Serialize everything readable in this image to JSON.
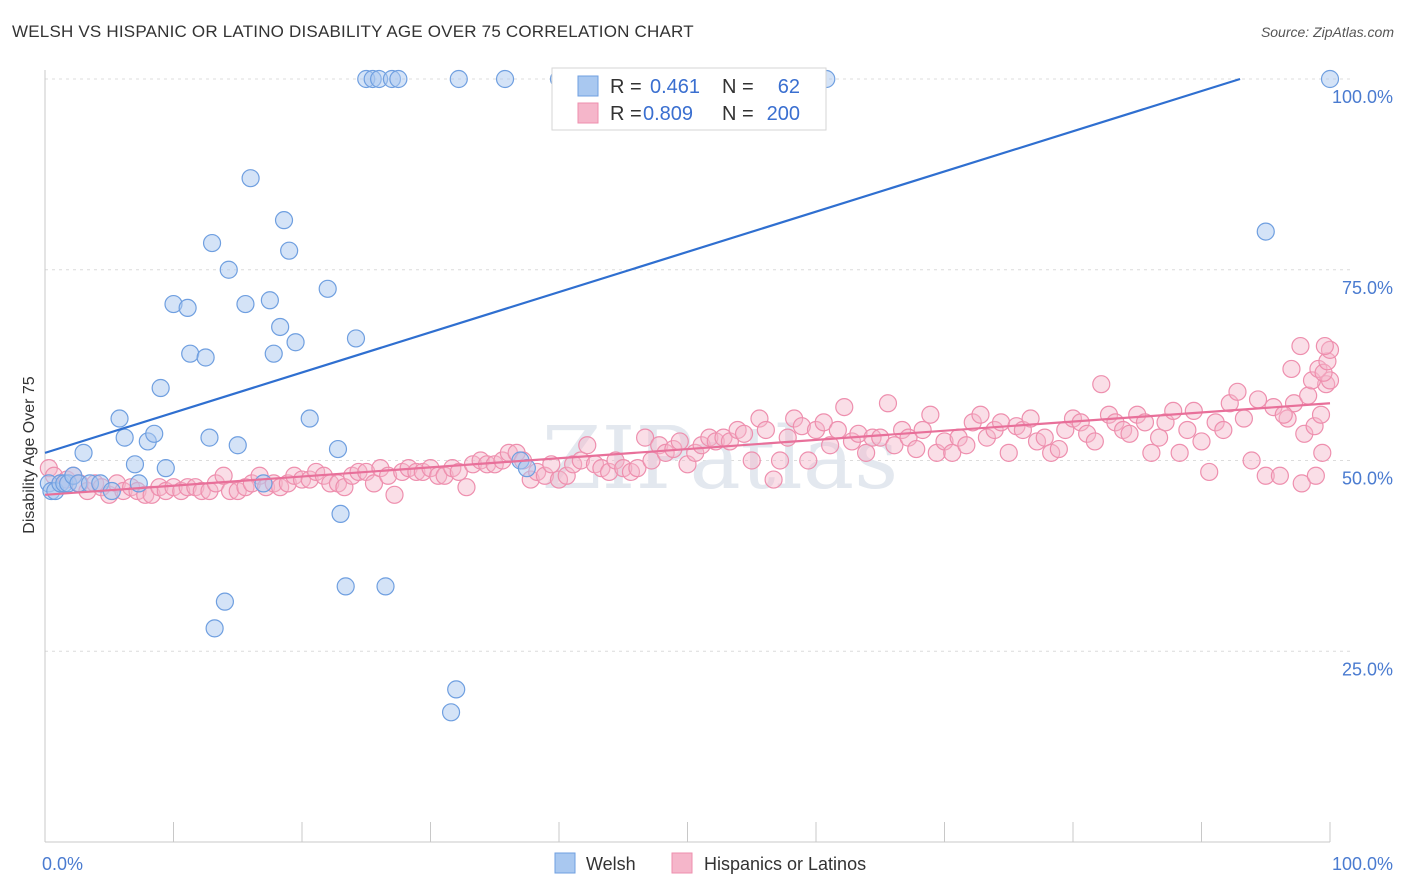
{
  "title": "WELSH VS HISPANIC OR LATINO DISABILITY AGE OVER 75 CORRELATION CHART",
  "source": "Source: ZipAtlas.com",
  "watermark": "ZIPatlas",
  "colors": {
    "welsh_fill": "#a9c8f0",
    "welsh_stroke": "#6f9fe0",
    "welsh_line": "#2f6fd0",
    "hisp_fill": "#f5b6ca",
    "hisp_stroke": "#ee8fae",
    "hisp_line": "#e8709a",
    "tick_color": "#4a7bd0"
  },
  "legend": {
    "rows": [
      {
        "r_label": "R =",
        "r_value": "0.461",
        "n_label": "N =",
        "n_value": "62"
      },
      {
        "r_label": "R =",
        "r_value": "0.809",
        "n_label": "N =",
        "n_value": "200"
      }
    ]
  },
  "bottom_legend": {
    "items": [
      "Welsh",
      "Hispanics or Latinos"
    ]
  },
  "chart_data": {
    "type": "scatter",
    "xlabel": "",
    "ylabel": "Disability Age Over 75",
    "xlim": [
      0,
      100
    ],
    "ylim": [
      0,
      100
    ],
    "x_tick_labels": [
      "0.0%",
      "100.0%"
    ],
    "y_ticks": [
      25,
      50,
      75,
      100
    ],
    "y_tick_labels": [
      "25.0%",
      "50.0%",
      "75.0%",
      "100.0%"
    ],
    "grid": "horizontal dashed",
    "legend_position": "top-center",
    "series": [
      {
        "name": "Welsh",
        "trend": {
          "x": [
            0,
            93
          ],
          "y": [
            51,
            100
          ]
        },
        "points": [
          [
            0.3,
            47
          ],
          [
            0.5,
            46
          ],
          [
            0.8,
            46
          ],
          [
            1.2,
            47
          ],
          [
            1.5,
            47
          ],
          [
            1.8,
            47
          ],
          [
            2.2,
            48
          ],
          [
            2.6,
            47
          ],
          [
            3,
            51
          ],
          [
            3.5,
            47
          ],
          [
            4.3,
            47
          ],
          [
            5.2,
            46
          ],
          [
            5.8,
            55.5
          ],
          [
            6.2,
            53
          ],
          [
            7,
            49.5
          ],
          [
            7.3,
            47
          ],
          [
            8,
            52.5
          ],
          [
            8.5,
            53.5
          ],
          [
            9,
            59.5
          ],
          [
            9.4,
            49
          ],
          [
            10,
            70.5
          ],
          [
            11.1,
            70
          ],
          [
            11.3,
            64
          ],
          [
            12.5,
            63.5
          ],
          [
            12.8,
            53
          ],
          [
            13,
            78.5
          ],
          [
            13.2,
            28
          ],
          [
            14,
            31.5
          ],
          [
            14.3,
            75
          ],
          [
            15,
            52
          ],
          [
            15.6,
            70.5
          ],
          [
            16,
            87
          ],
          [
            17,
            47
          ],
          [
            17.5,
            71
          ],
          [
            17.8,
            64
          ],
          [
            18.3,
            67.5
          ],
          [
            18.6,
            81.5
          ],
          [
            19,
            77.5
          ],
          [
            19.5,
            65.5
          ],
          [
            20.6,
            55.5
          ],
          [
            22,
            72.5
          ],
          [
            22.8,
            51.5
          ],
          [
            23,
            43
          ],
          [
            23.4,
            33.5
          ],
          [
            24.2,
            66
          ],
          [
            25,
            100
          ],
          [
            25.5,
            100
          ],
          [
            26,
            100
          ],
          [
            26.5,
            33.5
          ],
          [
            27,
            100
          ],
          [
            27.5,
            100
          ],
          [
            31.6,
            17
          ],
          [
            32,
            20
          ],
          [
            32.2,
            100
          ],
          [
            35.8,
            100
          ],
          [
            37,
            50
          ],
          [
            37.5,
            49
          ],
          [
            40,
            100
          ],
          [
            60.8,
            100
          ],
          [
            95,
            80
          ],
          [
            100,
            100
          ]
        ]
      },
      {
        "name": "Hispanics or Latinos",
        "trend": {
          "x": [
            0,
            100
          ],
          "y": [
            45.5,
            57.5
          ]
        },
        "points": [
          [
            0.3,
            49
          ],
          [
            0.7,
            48
          ],
          [
            1.2,
            47
          ],
          [
            1.7,
            47.5
          ],
          [
            2.2,
            48
          ],
          [
            2.7,
            47
          ],
          [
            3.3,
            46
          ],
          [
            3.9,
            47
          ],
          [
            4.4,
            46.5
          ],
          [
            5,
            45.5
          ],
          [
            5.6,
            47
          ],
          [
            6.1,
            46
          ],
          [
            6.7,
            46.5
          ],
          [
            7.2,
            46
          ],
          [
            7.8,
            45.5
          ],
          [
            8.3,
            45.5
          ],
          [
            8.9,
            46.5
          ],
          [
            9.4,
            46
          ],
          [
            10,
            46.5
          ],
          [
            10.6,
            46
          ],
          [
            11.1,
            46.5
          ],
          [
            11.7,
            46.5
          ],
          [
            12.2,
            46
          ],
          [
            12.8,
            46
          ],
          [
            13.3,
            47
          ],
          [
            13.9,
            48
          ],
          [
            14.4,
            46
          ],
          [
            15,
            46
          ],
          [
            15.6,
            46.5
          ],
          [
            16.1,
            47
          ],
          [
            16.7,
            48
          ],
          [
            17.2,
            46.5
          ],
          [
            17.8,
            47
          ],
          [
            18.3,
            46.5
          ],
          [
            18.9,
            47
          ],
          [
            19.4,
            48
          ],
          [
            20,
            47.5
          ],
          [
            20.6,
            47.5
          ],
          [
            21.1,
            48.5
          ],
          [
            21.7,
            48
          ],
          [
            22.2,
            47
          ],
          [
            22.8,
            47
          ],
          [
            23.3,
            46.5
          ],
          [
            23.9,
            48
          ],
          [
            24.4,
            48.5
          ],
          [
            25,
            48.5
          ],
          [
            25.6,
            47
          ],
          [
            26.1,
            49
          ],
          [
            26.7,
            48
          ],
          [
            27.2,
            45.5
          ],
          [
            27.8,
            48.5
          ],
          [
            28.3,
            49
          ],
          [
            28.9,
            48.5
          ],
          [
            29.4,
            48.5
          ],
          [
            30,
            49
          ],
          [
            30.6,
            48
          ],
          [
            31.1,
            48
          ],
          [
            31.7,
            49
          ],
          [
            32.2,
            48.5
          ],
          [
            32.8,
            46.5
          ],
          [
            33.3,
            49.5
          ],
          [
            33.9,
            50
          ],
          [
            34.4,
            49.5
          ],
          [
            35,
            49.5
          ],
          [
            35.6,
            50
          ],
          [
            36.1,
            51
          ],
          [
            36.7,
            51
          ],
          [
            37.2,
            50
          ],
          [
            37.8,
            47.5
          ],
          [
            38.3,
            48.5
          ],
          [
            38.9,
            48
          ],
          [
            39.4,
            49.5
          ],
          [
            40,
            47.5
          ],
          [
            40.6,
            48
          ],
          [
            41.1,
            49.5
          ],
          [
            41.7,
            50
          ],
          [
            42.2,
            52
          ],
          [
            42.8,
            49.5
          ],
          [
            43.3,
            49
          ],
          [
            43.9,
            48.5
          ],
          [
            44.4,
            50
          ],
          [
            45,
            49
          ],
          [
            45.6,
            48.5
          ],
          [
            46.1,
            49
          ],
          [
            46.7,
            53
          ],
          [
            47.2,
            50
          ],
          [
            47.8,
            52
          ],
          [
            48.3,
            51
          ],
          [
            48.9,
            51.5
          ],
          [
            49.4,
            52.5
          ],
          [
            50,
            49.5
          ],
          [
            50.6,
            51
          ],
          [
            51.1,
            52
          ],
          [
            51.7,
            53
          ],
          [
            52.2,
            52.5
          ],
          [
            52.8,
            53
          ],
          [
            53.3,
            52.5
          ],
          [
            53.9,
            54
          ],
          [
            54.4,
            53.5
          ],
          [
            55,
            50
          ],
          [
            55.6,
            55.5
          ],
          [
            56.1,
            54
          ],
          [
            56.7,
            47.5
          ],
          [
            57.2,
            50
          ],
          [
            57.8,
            53
          ],
          [
            58.3,
            55.5
          ],
          [
            58.9,
            54.5
          ],
          [
            59.4,
            50
          ],
          [
            60,
            54
          ],
          [
            60.6,
            55
          ],
          [
            61.1,
            52
          ],
          [
            61.7,
            54
          ],
          [
            62.2,
            57
          ],
          [
            62.8,
            52.5
          ],
          [
            63.3,
            53.5
          ],
          [
            63.9,
            51
          ],
          [
            64.4,
            53
          ],
          [
            65,
            53
          ],
          [
            65.6,
            57.5
          ],
          [
            66.1,
            52
          ],
          [
            66.7,
            54
          ],
          [
            67.2,
            53
          ],
          [
            67.8,
            51.5
          ],
          [
            68.3,
            54
          ],
          [
            68.9,
            56
          ],
          [
            69.4,
            51
          ],
          [
            70,
            52.5
          ],
          [
            70.6,
            51
          ],
          [
            71.1,
            53
          ],
          [
            71.7,
            52
          ],
          [
            72.2,
            55
          ],
          [
            72.8,
            56
          ],
          [
            73.3,
            53
          ],
          [
            73.9,
            54
          ],
          [
            74.4,
            55
          ],
          [
            75,
            51
          ],
          [
            75.6,
            54.5
          ],
          [
            76.1,
            54
          ],
          [
            76.7,
            55.5
          ],
          [
            77.2,
            52.5
          ],
          [
            77.8,
            53
          ],
          [
            78.3,
            51
          ],
          [
            78.9,
            51.5
          ],
          [
            79.4,
            54
          ],
          [
            80,
            55.5
          ],
          [
            80.6,
            55
          ],
          [
            81.1,
            53.5
          ],
          [
            81.7,
            52.5
          ],
          [
            82.2,
            60
          ],
          [
            82.8,
            56
          ],
          [
            83.3,
            55
          ],
          [
            83.9,
            54
          ],
          [
            84.4,
            53.5
          ],
          [
            85,
            56
          ],
          [
            85.6,
            55
          ],
          [
            86.1,
            51
          ],
          [
            86.7,
            53
          ],
          [
            87.2,
            55
          ],
          [
            87.8,
            56.5
          ],
          [
            88.3,
            51
          ],
          [
            88.9,
            54
          ],
          [
            89.4,
            56.5
          ],
          [
            90,
            52.5
          ],
          [
            90.6,
            48.5
          ],
          [
            91.1,
            55
          ],
          [
            91.7,
            54
          ],
          [
            92.2,
            57.5
          ],
          [
            92.8,
            59
          ],
          [
            93.3,
            55.5
          ],
          [
            93.9,
            50
          ],
          [
            94.4,
            58
          ],
          [
            95,
            48
          ],
          [
            95.6,
            57
          ],
          [
            96.1,
            48
          ],
          [
            96.7,
            55.5
          ],
          [
            97.2,
            57.5
          ],
          [
            97.8,
            47
          ],
          [
            98.3,
            58.5
          ],
          [
            98.9,
            48
          ],
          [
            99.4,
            51
          ],
          [
            99.7,
            60
          ],
          [
            100,
            60.5
          ],
          [
            96.4,
            56
          ],
          [
            97,
            62
          ],
          [
            97.7,
            65
          ],
          [
            98.6,
            60.5
          ],
          [
            99.1,
            62
          ],
          [
            99.5,
            61.5
          ],
          [
            98,
            53.5
          ],
          [
            98.8,
            54.5
          ],
          [
            99.3,
            56
          ],
          [
            99.8,
            63
          ],
          [
            100,
            64.5
          ],
          [
            99.6,
            65
          ]
        ]
      }
    ]
  }
}
